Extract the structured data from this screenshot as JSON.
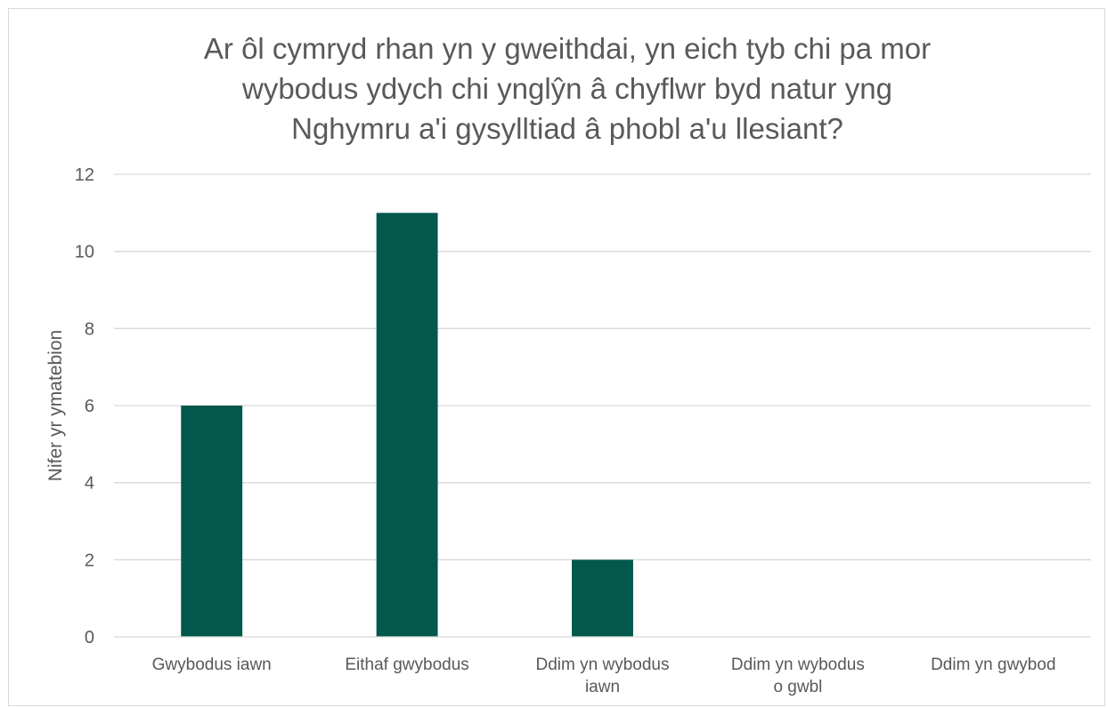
{
  "chart_data": {
    "type": "bar",
    "title_lines": [
      "Ar ôl cymryd rhan yn y gweithdai, yn eich tyb chi pa mor",
      "wybodus ydych chi ynglŷn â chyflwr byd natur yng",
      "Nghymru a'i gysylltiad â phobl a'u llesiant?"
    ],
    "ylabel": "Nifer yr ymatebion",
    "xlabel": "",
    "ylim": [
      0,
      12
    ],
    "yticks": [
      0,
      2,
      4,
      6,
      8,
      10,
      12
    ],
    "grid": true,
    "legend": "none",
    "bar_color": "#02584a",
    "categories": [
      [
        "Gwybodus iawn"
      ],
      [
        "Eithaf gwybodus"
      ],
      [
        "Ddim yn wybodus",
        "iawn"
      ],
      [
        "Ddim yn wybodus",
        "o gwbl"
      ],
      [
        "Ddim yn gwybod"
      ]
    ],
    "values": [
      6,
      11,
      2,
      0,
      0
    ]
  }
}
